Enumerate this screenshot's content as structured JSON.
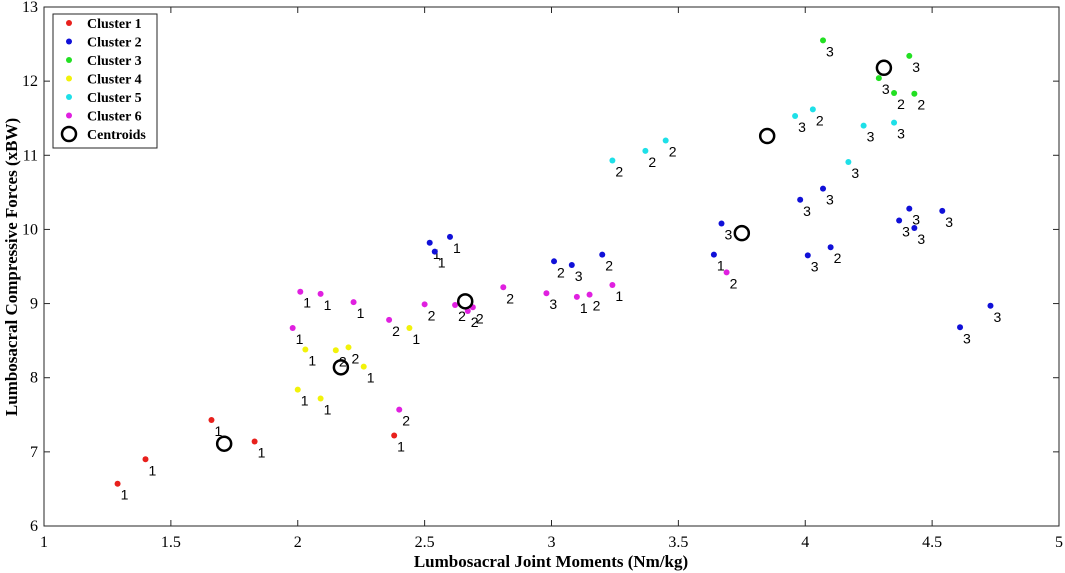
{
  "chart_data": {
    "type": "scatter",
    "xlabel": "Lumbosacral Joint Moments (Nm/kg)",
    "ylabel": "Lumbosacral Compressive Forces (xBW)",
    "xlim": [
      1,
      5
    ],
    "ylim": [
      6,
      13
    ],
    "xticks": [
      "1",
      "1.5",
      "2",
      "2.5",
      "3",
      "3.5",
      "4",
      "4.5",
      "5"
    ],
    "yticks": [
      "6",
      "7",
      "8",
      "9",
      "10",
      "11",
      "12",
      "13"
    ],
    "legend_position": "top-left",
    "grid": false,
    "series": [
      {
        "name": "Cluster 1",
        "color": "#e8201c",
        "points": [
          {
            "x": 1.29,
            "y": 6.57,
            "label": "1"
          },
          {
            "x": 1.4,
            "y": 6.9,
            "label": "1"
          },
          {
            "x": 1.66,
            "y": 7.43,
            "label": "1"
          },
          {
            "x": 1.83,
            "y": 7.14,
            "label": "1"
          },
          {
            "x": 2.38,
            "y": 7.22,
            "label": "1"
          }
        ]
      },
      {
        "name": "Cluster 2",
        "color": "#1010d8",
        "points": [
          {
            "x": 2.52,
            "y": 9.82,
            "label": "1"
          },
          {
            "x": 2.54,
            "y": 9.7,
            "label": "1"
          },
          {
            "x": 2.6,
            "y": 9.9,
            "label": "1"
          },
          {
            "x": 3.01,
            "y": 9.57,
            "label": "2"
          },
          {
            "x": 3.08,
            "y": 9.52,
            "label": "3"
          },
          {
            "x": 3.2,
            "y": 9.66,
            "label": "2"
          },
          {
            "x": 3.64,
            "y": 9.66,
            "label": "1"
          },
          {
            "x": 3.67,
            "y": 10.08,
            "label": "3"
          },
          {
            "x": 3.98,
            "y": 10.4,
            "label": "3"
          },
          {
            "x": 4.01,
            "y": 9.65,
            "label": "3"
          },
          {
            "x": 4.07,
            "y": 10.55,
            "label": "3"
          },
          {
            "x": 4.1,
            "y": 9.76,
            "label": "2"
          },
          {
            "x": 4.37,
            "y": 10.12,
            "label": "3"
          },
          {
            "x": 4.41,
            "y": 10.28,
            "label": "3"
          },
          {
            "x": 4.43,
            "y": 10.02,
            "label": "3"
          },
          {
            "x": 4.54,
            "y": 10.25,
            "label": "3"
          },
          {
            "x": 4.61,
            "y": 8.68,
            "label": "3"
          },
          {
            "x": 4.73,
            "y": 8.97,
            "label": "3"
          }
        ]
      },
      {
        "name": "Cluster 3",
        "color": "#22e022",
        "points": [
          {
            "x": 4.07,
            "y": 12.55,
            "label": "3"
          },
          {
            "x": 4.29,
            "y": 12.04,
            "label": "3"
          },
          {
            "x": 4.35,
            "y": 11.84,
            "label": "2"
          },
          {
            "x": 4.41,
            "y": 12.34,
            "label": "3"
          },
          {
            "x": 4.43,
            "y": 11.83,
            "label": "2"
          }
        ]
      },
      {
        "name": "Cluster 4",
        "color": "#f2f20a",
        "points": [
          {
            "x": 2.0,
            "y": 7.84,
            "label": "1"
          },
          {
            "x": 2.03,
            "y": 8.38,
            "label": "1"
          },
          {
            "x": 2.09,
            "y": 7.72,
            "label": "1"
          },
          {
            "x": 2.15,
            "y": 8.37,
            "label": "2"
          },
          {
            "x": 2.2,
            "y": 8.41,
            "label": "2"
          },
          {
            "x": 2.26,
            "y": 8.15,
            "label": "1"
          },
          {
            "x": 2.44,
            "y": 8.67,
            "label": "1"
          }
        ]
      },
      {
        "name": "Cluster 5",
        "color": "#1ee0e8",
        "points": [
          {
            "x": 3.24,
            "y": 10.93,
            "label": "2"
          },
          {
            "x": 3.37,
            "y": 11.06,
            "label": "2"
          },
          {
            "x": 3.45,
            "y": 11.2,
            "label": "2"
          },
          {
            "x": 3.96,
            "y": 11.53,
            "label": "3"
          },
          {
            "x": 4.03,
            "y": 11.62,
            "label": "2"
          },
          {
            "x": 4.17,
            "y": 10.91,
            "label": "3"
          },
          {
            "x": 4.23,
            "y": 11.4,
            "label": "3"
          },
          {
            "x": 4.35,
            "y": 11.44,
            "label": "3"
          }
        ]
      },
      {
        "name": "Cluster 6",
        "color": "#e020e0",
        "points": [
          {
            "x": 1.98,
            "y": 8.67,
            "label": "1"
          },
          {
            "x": 2.01,
            "y": 9.16,
            "label": "1"
          },
          {
            "x": 2.09,
            "y": 9.13,
            "label": "1"
          },
          {
            "x": 2.22,
            "y": 9.02,
            "label": "1"
          },
          {
            "x": 2.36,
            "y": 8.78,
            "label": "2"
          },
          {
            "x": 2.4,
            "y": 7.57,
            "label": "2"
          },
          {
            "x": 2.5,
            "y": 8.99,
            "label": "2"
          },
          {
            "x": 2.62,
            "y": 8.98,
            "label": "2"
          },
          {
            "x": 2.67,
            "y": 8.9,
            "label": "2"
          },
          {
            "x": 2.69,
            "y": 8.95,
            "label": "2"
          },
          {
            "x": 2.81,
            "y": 9.22,
            "label": "2"
          },
          {
            "x": 2.98,
            "y": 9.14,
            "label": "3"
          },
          {
            "x": 3.1,
            "y": 9.09,
            "label": "1"
          },
          {
            "x": 3.15,
            "y": 9.12,
            "label": "2"
          },
          {
            "x": 3.24,
            "y": 9.25,
            "label": "1"
          },
          {
            "x": 3.69,
            "y": 9.42,
            "label": "2"
          }
        ]
      }
    ],
    "centroids": {
      "name": "Centroids",
      "points": [
        {
          "x": 1.71,
          "y": 7.11
        },
        {
          "x": 2.17,
          "y": 8.14
        },
        {
          "x": 2.66,
          "y": 9.03
        },
        {
          "x": 3.75,
          "y": 9.95
        },
        {
          "x": 3.85,
          "y": 11.26
        },
        {
          "x": 4.31,
          "y": 12.18
        }
      ]
    }
  }
}
